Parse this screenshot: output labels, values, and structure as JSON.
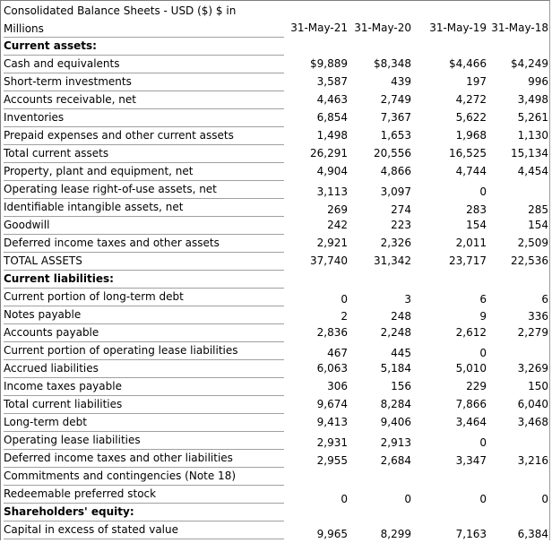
{
  "title": {
    "line1": "Consolidated Balance Sheets - USD ($) $ in",
    "line2": "Millions"
  },
  "columns": [
    "31-May-21",
    "31-May-20",
    "31-May-19",
    "31-May-18"
  ],
  "rows": [
    {
      "label": "Current assets:",
      "bold": true,
      "values": [
        "",
        "",
        "",
        ""
      ]
    },
    {
      "label": "Cash and equivalents",
      "bold": false,
      "values": [
        "$9,889",
        "$8,348",
        "$4,466",
        "$4,249"
      ]
    },
    {
      "label": "Short-term investments",
      "bold": false,
      "values": [
        "3,587",
        "439",
        "197",
        "996"
      ]
    },
    {
      "label": "Accounts receivable, net",
      "bold": false,
      "values": [
        "4,463",
        "2,749",
        "4,272",
        "3,498"
      ]
    },
    {
      "label": "Inventories",
      "bold": false,
      "values": [
        "6,854",
        "7,367",
        "5,622",
        "5,261"
      ]
    },
    {
      "label": "Prepaid expenses and other current assets",
      "bold": false,
      "values": [
        "1,498",
        "1,653",
        "1,968",
        "1,130"
      ]
    },
    {
      "label": "Total current assets",
      "bold": false,
      "values": [
        "26,291",
        "20,556",
        "16,525",
        "15,134"
      ]
    },
    {
      "label": "Property, plant and equipment, net",
      "bold": false,
      "values": [
        "4,904",
        "4,866",
        "4,744",
        "4,454"
      ]
    },
    {
      "label": "Operating lease right-of-use assets, net",
      "bold": false,
      "values": [
        "3,113",
        "3,097",
        "0",
        ""
      ]
    },
    {
      "label": "Identifiable intangible assets, net",
      "bold": false,
      "values": [
        "269",
        "274",
        "283",
        "285"
      ]
    },
    {
      "label": "Goodwill",
      "bold": false,
      "values": [
        "242",
        "223",
        "154",
        "154"
      ]
    },
    {
      "label": "Deferred income taxes and other assets",
      "bold": false,
      "values": [
        "2,921",
        "2,326",
        "2,011",
        "2,509"
      ]
    },
    {
      "label": "TOTAL ASSETS",
      "bold": false,
      "values": [
        "37,740",
        "31,342",
        "23,717",
        "22,536"
      ]
    },
    {
      "label": "Current liabilities:",
      "bold": true,
      "values": [
        "",
        "",
        "",
        ""
      ]
    },
    {
      "label": "Current portion of long-term debt",
      "bold": false,
      "values": [
        "0",
        "3",
        "6",
        "6"
      ]
    },
    {
      "label": "Notes payable",
      "bold": false,
      "values": [
        "2",
        "248",
        "9",
        "336"
      ]
    },
    {
      "label": "Accounts payable",
      "bold": false,
      "values": [
        "2,836",
        "2,248",
        "2,612",
        "2,279"
      ]
    },
    {
      "label": "Current portion of operating lease liabilities",
      "bold": false,
      "values": [
        "467",
        "445",
        "0",
        ""
      ]
    },
    {
      "label": "Accrued liabilities",
      "bold": false,
      "values": [
        "6,063",
        "5,184",
        "5,010",
        "3,269"
      ]
    },
    {
      "label": "Income taxes payable",
      "bold": false,
      "values": [
        "306",
        "156",
        "229",
        "150"
      ]
    },
    {
      "label": "Total current liabilities",
      "bold": false,
      "values": [
        "9,674",
        "8,284",
        "7,866",
        "6,040"
      ]
    },
    {
      "label": "Long-term debt",
      "bold": false,
      "values": [
        "9,413",
        "9,406",
        "3,464",
        "3,468"
      ]
    },
    {
      "label": "Operating lease liabilities",
      "bold": false,
      "values": [
        "2,931",
        "2,913",
        "0",
        ""
      ]
    },
    {
      "label": "Deferred income taxes and other liabilities",
      "bold": false,
      "values": [
        "2,955",
        "2,684",
        "3,347",
        "3,216"
      ]
    },
    {
      "label": "Commitments and contingencies (Note 18)",
      "bold": false,
      "values": [
        "",
        "",
        "",
        ""
      ]
    },
    {
      "label": "Redeemable preferred stock",
      "bold": false,
      "values": [
        "0",
        "0",
        "0",
        "0"
      ]
    },
    {
      "label": "Shareholders' equity:",
      "bold": true,
      "values": [
        "",
        "",
        "",
        ""
      ]
    },
    {
      "label": "Capital in excess of stated value",
      "bold": false,
      "values": [
        "9,965",
        "8,299",
        "7,163",
        "6,384"
      ]
    }
  ]
}
